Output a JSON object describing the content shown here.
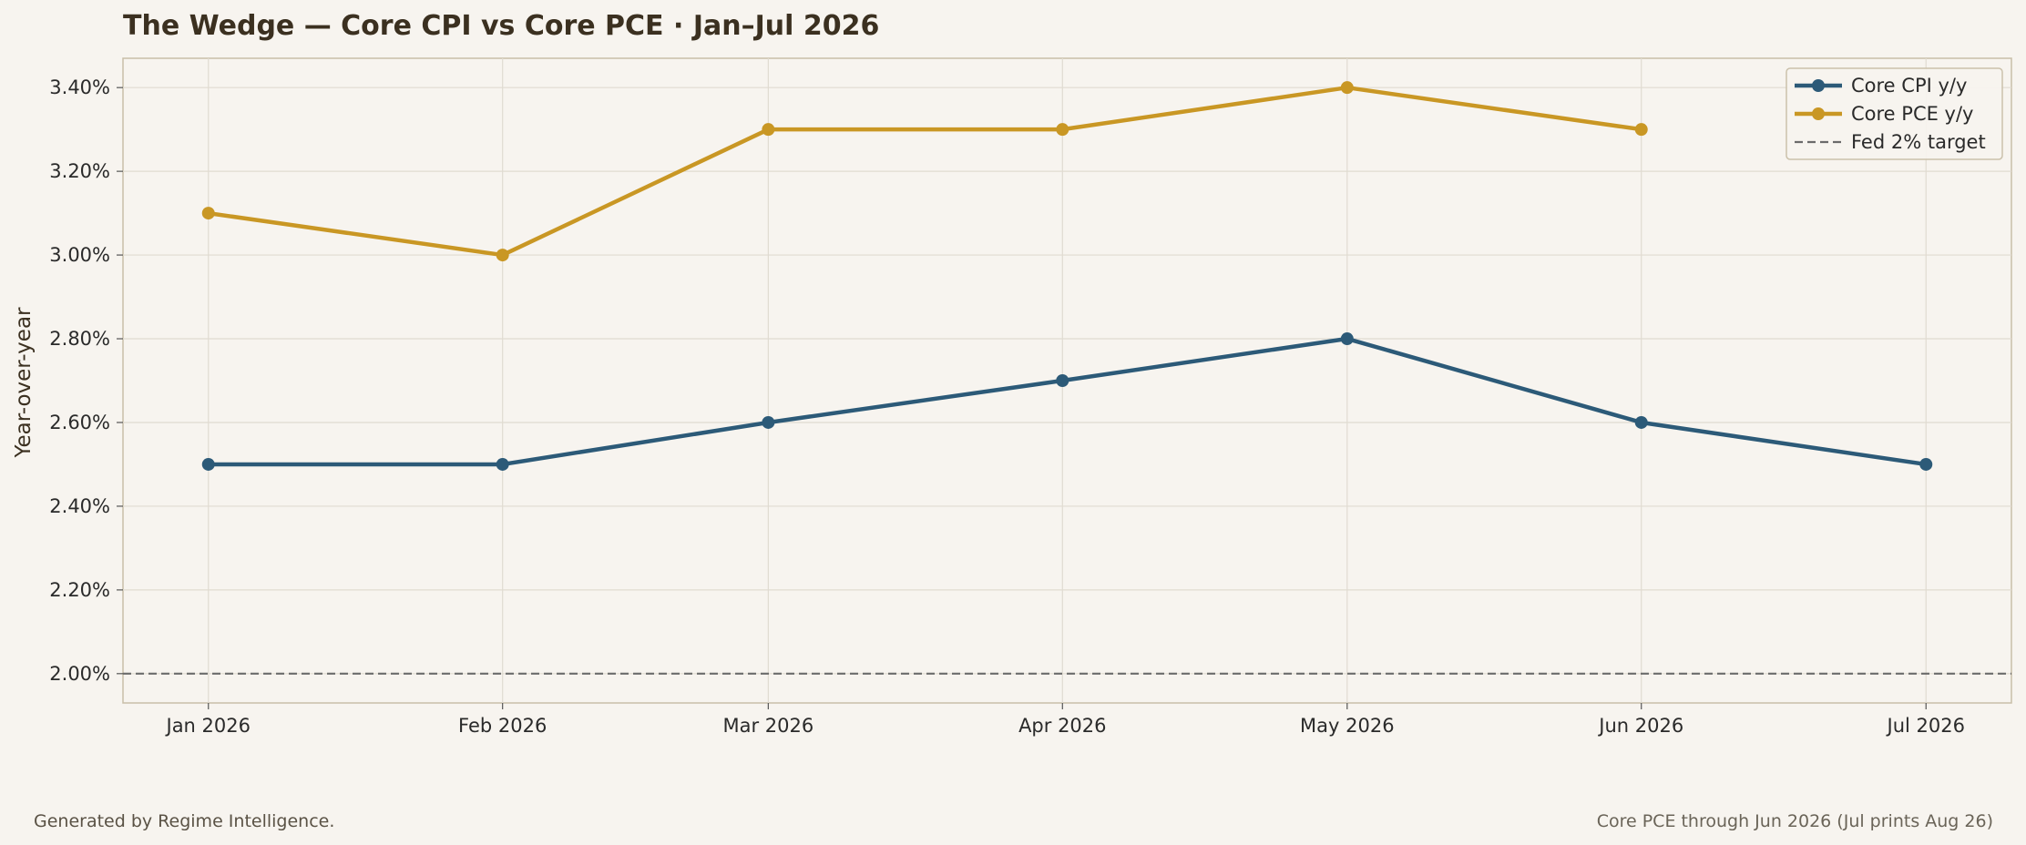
{
  "chart_data": {
    "type": "line",
    "title": "The Wedge — Core CPI vs Core PCE · Jan–Jul 2026",
    "ylabel": "Year-over-year",
    "xlabel": "",
    "categories": [
      "Jan 2026",
      "Feb 2026",
      "Mar 2026",
      "Apr 2026",
      "May 2026",
      "Jun 2026",
      "Jul 2026"
    ],
    "yticks": [
      "2.00%",
      "2.20%",
      "2.40%",
      "2.60%",
      "2.80%",
      "3.00%",
      "3.20%",
      "3.40%"
    ],
    "ytick_values": [
      2.0,
      2.2,
      2.4,
      2.6,
      2.8,
      3.0,
      3.2,
      3.4
    ],
    "ylim": [
      1.93,
      3.47
    ],
    "x_positions": [
      0,
      31,
      59,
      90,
      120,
      151,
      181
    ],
    "xlim": [
      -9,
      190
    ],
    "grid": true,
    "legend_position": "top-right",
    "series": [
      {
        "name": "Core CPI y/y",
        "color": "#2c5a78",
        "values": [
          2.5,
          2.5,
          2.6,
          2.7,
          2.8,
          2.6,
          2.5
        ]
      },
      {
        "name": "Core PCE y/y",
        "color": "#c99724",
        "values": [
          3.1,
          3.0,
          3.3,
          3.3,
          3.4,
          3.3,
          null
        ]
      }
    ],
    "reference_line": {
      "name": "Fed 2% target",
      "value": 2.0,
      "color": "#6b6b6b",
      "style": "dashed"
    }
  },
  "footer": {
    "left": "Generated by Regime Intelligence.",
    "right": "Core PCE through Jun 2026 (Jul prints Aug 26)"
  }
}
